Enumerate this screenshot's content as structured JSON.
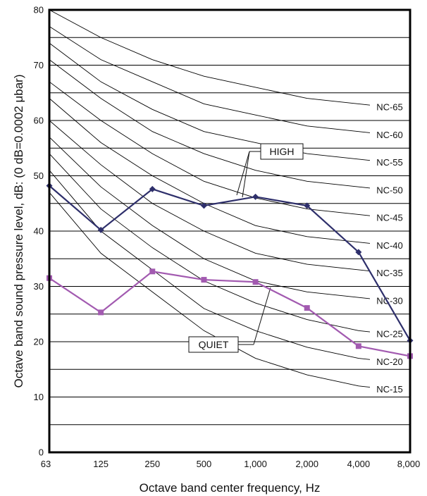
{
  "chart_data": {
    "type": "line",
    "title": "",
    "xlabel": "Octave band center frequency, Hz",
    "ylabel": "Octave band sound pressure level, dB: (0 dB=0.0002 μbar)",
    "categories": [
      "63",
      "125",
      "250",
      "500",
      "1,000",
      "2,000",
      "4,000",
      "8,000"
    ],
    "ylim": [
      0,
      80
    ],
    "yticks": [
      "0",
      "10",
      "20",
      "30",
      "40",
      "50",
      "60",
      "70",
      "80"
    ],
    "grid": "horizontal every 5 dB",
    "series": [
      {
        "name": "HIGH",
        "color": "#2e2f6b",
        "marker": "diamond",
        "values": [
          48.2,
          40.2,
          47.6,
          44.6,
          46.2,
          44.6,
          36.2,
          20.2
        ]
      },
      {
        "name": "QUIET",
        "color": "#a25ab0",
        "marker": "square",
        "values": [
          31.5,
          25.3,
          32.7,
          31.2,
          30.8,
          26.1,
          19.2,
          17.4
        ]
      }
    ],
    "nc_curves": [
      {
        "label": "NC-15",
        "values": [
          47,
          36,
          29,
          22,
          17,
          14,
          12,
          11
        ]
      },
      {
        "label": "NC-20",
        "values": [
          51,
          40,
          33,
          26,
          22,
          19,
          17,
          16
        ]
      },
      {
        "label": "NC-25",
        "values": [
          54,
          44,
          37,
          31,
          27,
          24,
          22,
          21
        ]
      },
      {
        "label": "NC-30",
        "values": [
          57,
          48,
          41,
          35,
          31,
          29,
          28,
          27
        ]
      },
      {
        "label": "NC-35",
        "values": [
          60,
          52,
          45,
          40,
          36,
          34,
          33,
          32
        ]
      },
      {
        "label": "NC-40",
        "values": [
          64,
          56,
          50,
          45,
          41,
          39,
          38,
          37
        ]
      },
      {
        "label": "NC-45",
        "values": [
          67,
          60,
          54,
          49,
          46,
          44,
          43,
          42
        ]
      },
      {
        "label": "NC-50",
        "values": [
          71,
          64,
          58,
          54,
          51,
          49,
          48,
          47
        ]
      },
      {
        "label": "NC-55",
        "values": [
          74,
          67,
          62,
          58,
          56,
          54,
          53,
          52
        ]
      },
      {
        "label": "NC-60",
        "values": [
          77,
          71,
          67,
          63,
          61,
          59,
          58,
          57
        ]
      },
      {
        "label": "NC-65",
        "values": [
          80,
          75,
          71,
          68,
          66,
          64,
          63,
          62
        ]
      }
    ],
    "annotations": [
      {
        "text": "HIGH",
        "series": "HIGH"
      },
      {
        "text": "QUIET",
        "series": "QUIET"
      }
    ]
  }
}
